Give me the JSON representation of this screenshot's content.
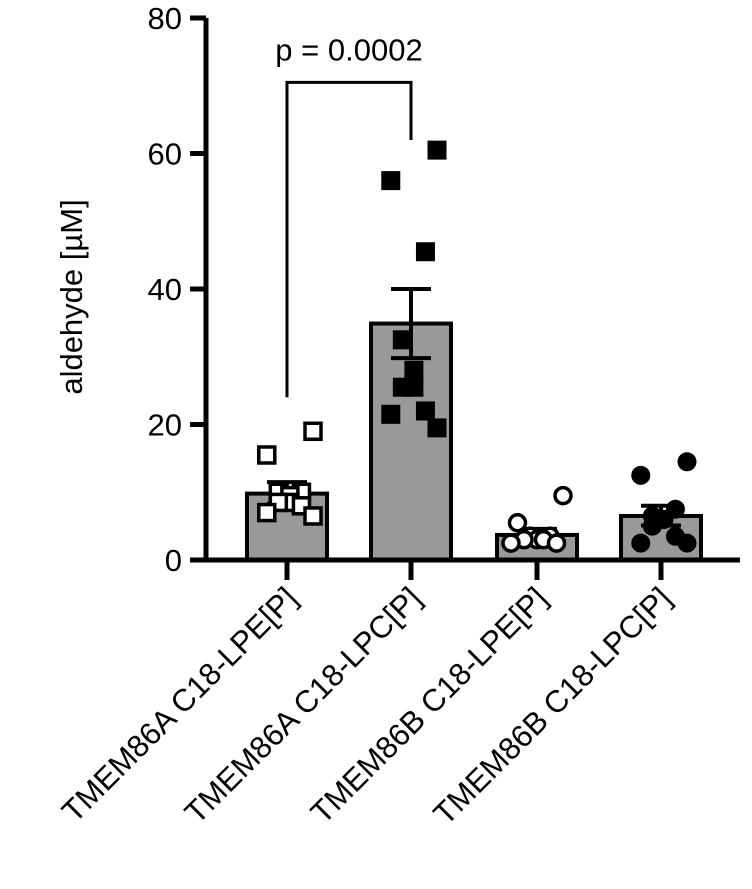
{
  "chart_data": {
    "type": "bar",
    "title": "",
    "ylabel": "aldehyde [µM]",
    "xlabel": "",
    "ylim": [
      0,
      80
    ],
    "yticks": [
      0,
      20,
      40,
      60,
      80
    ],
    "categories": [
      "TMEM86A C18-LPE[P]",
      "TMEM86A C18-LPC[P]",
      "TMEM86B C18-LPE[P]",
      "TMEM86B C18-LPC[P]"
    ],
    "values": [
      9.8,
      34.9,
      3.7,
      6.5
    ],
    "sem_upper": [
      11.5,
      40.0,
      4.6,
      8.0
    ],
    "sem_lower": [
      8.3,
      29.8,
      2.9,
      5.1
    ],
    "points": [
      [
        19.0,
        15.5,
        10.0,
        10.0,
        9.5,
        8.5,
        8.5,
        8.0,
        7.0,
        6.5
      ],
      [
        60.5,
        56.0,
        45.5,
        32.5,
        28.0,
        25.5,
        25.5,
        22.0,
        21.5,
        19.5
      ],
      [
        9.5,
        5.5,
        3.5,
        3.5,
        3.0,
        3.0,
        3.0,
        2.5,
        2.5
      ],
      [
        14.5,
        12.5,
        7.5,
        6.5,
        6.0,
        6.0,
        5.0,
        3.5,
        2.5,
        2.5
      ]
    ],
    "markers": [
      "open-square",
      "filled-square",
      "open-circle",
      "filled-circle"
    ],
    "annotation": {
      "text": "p = 0.0002",
      "from": 0,
      "to": 1,
      "y": 70.5,
      "leftDrop": 24,
      "rightDrop": 62
    }
  }
}
